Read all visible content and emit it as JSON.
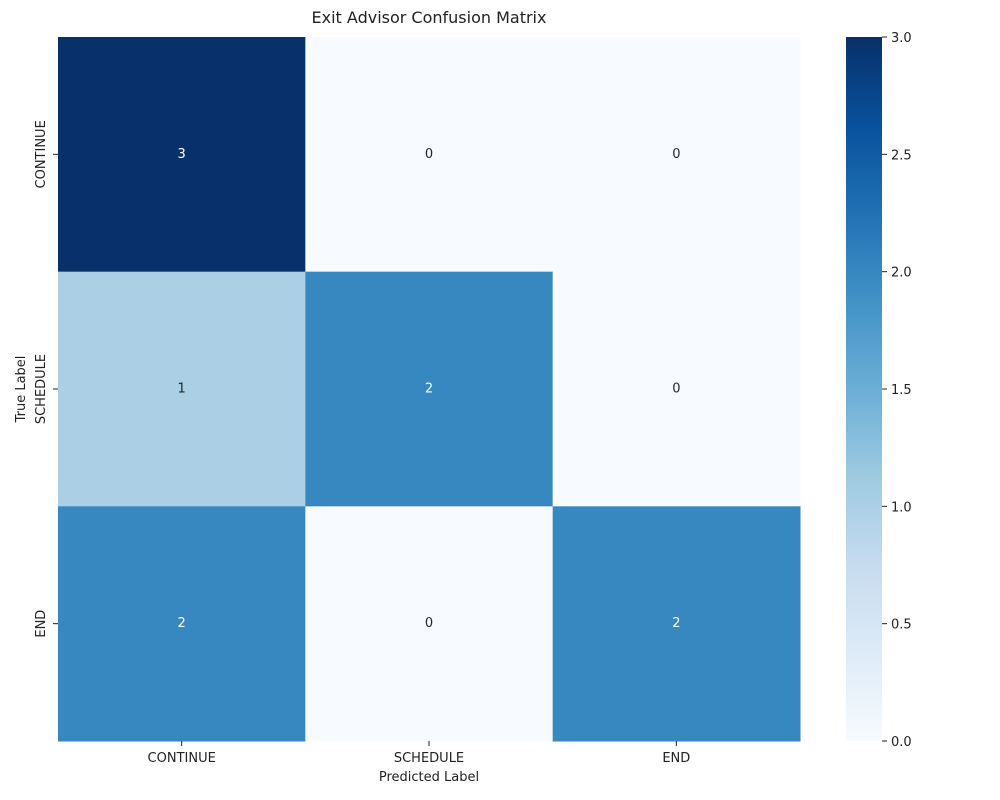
{
  "chart_data": {
    "type": "heatmap",
    "title": "Exit Advisor Confusion Matrix",
    "xlabel": "Predicted Label",
    "ylabel": "True Label",
    "x_categories": [
      "CONTINUE",
      "SCHEDULE",
      "END"
    ],
    "y_categories": [
      "CONTINUE",
      "SCHEDULE",
      "END"
    ],
    "values": [
      [
        3,
        0,
        0
      ],
      [
        1,
        2,
        0
      ],
      [
        2,
        0,
        2
      ]
    ],
    "colorbar": {
      "range": [
        0,
        3
      ],
      "ticks": [
        "0.0",
        "0.5",
        "1.0",
        "1.5",
        "2.0",
        "2.5",
        "3.0"
      ],
      "colormap": "Blues"
    },
    "grid": false,
    "legend": "colorbar-right"
  }
}
